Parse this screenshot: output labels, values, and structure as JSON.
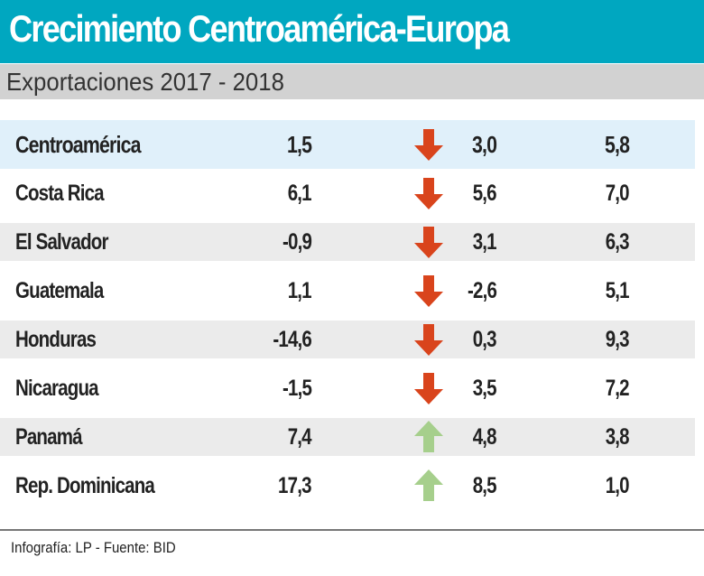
{
  "header": {
    "title": "Crecimiento Centroamérica-Europa",
    "subtitle": "Exportaciones 2017 - 2018"
  },
  "colors": {
    "title_bar": "#00a7c0",
    "subtitle_bar": "#d2d2d2",
    "arrow_down": "#d9441c",
    "arrow_up": "#a6cf8c"
  },
  "chart_data": {
    "type": "table",
    "rows": [
      {
        "name": "Centroamérica",
        "v1": "1,5",
        "trend": "down",
        "v2": "3,0",
        "v3": "5,8"
      },
      {
        "name": "Costa Rica",
        "v1": "6,1",
        "trend": "down",
        "v2": "5,6",
        "v3": "7,0"
      },
      {
        "name": "El Salvador",
        "v1": "-0,9",
        "trend": "down",
        "v2": "3,1",
        "v3": "6,3"
      },
      {
        "name": "Guatemala",
        "v1": "1,1",
        "trend": "down",
        "v2": "-2,6",
        "v3": "5,1"
      },
      {
        "name": "Honduras",
        "v1": "-14,6",
        "trend": "down",
        "v2": "0,3",
        "v3": "9,3"
      },
      {
        "name": "Nicaragua",
        "v1": "-1,5",
        "trend": "down",
        "v2": "3,5",
        "v3": "7,2"
      },
      {
        "name": "Panamá",
        "v1": "7,4",
        "trend": "up",
        "v2": "4,8",
        "v3": "3,8"
      },
      {
        "name": "Rep. Dominicana",
        "v1": "17,3",
        "trend": "up",
        "v2": "8,5",
        "v3": "1,0"
      }
    ]
  },
  "footer": {
    "credit": "Infografía: LP  - Fuente: BID"
  }
}
